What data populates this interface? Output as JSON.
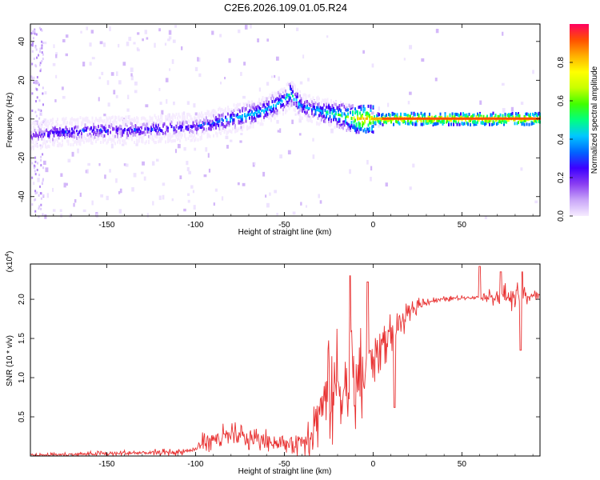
{
  "title": "C2E6.2026.109.01.05.R24",
  "chart_data": [
    {
      "type": "heatmap",
      "name": "spectrogram",
      "xlabel": "Height of straight line (km)",
      "ylabel": "Frequency (Hz)",
      "xlim": [
        -193,
        94
      ],
      "ylim": [
        -50,
        49
      ],
      "xticks": [
        -150,
        -100,
        -50,
        0,
        50
      ],
      "xtick_labels": [
        "-150",
        "-100",
        "-50",
        "0",
        "50"
      ],
      "yticks": [
        -40,
        -20,
        0,
        20,
        40
      ],
      "ytick_labels": [
        "-40",
        "-20",
        "0",
        "20",
        "40"
      ],
      "colorbar": {
        "label": "Normalized spectral amplitude",
        "range": [
          0,
          1
        ],
        "ticks": [
          0.0,
          0.2,
          0.4,
          0.6,
          0.8
        ],
        "tick_labels": [
          "0.0",
          "0.2",
          "0.4",
          "0.6",
          "0.8"
        ],
        "colors": [
          "#f6ecff",
          "#c9a6f8",
          "#8a3df2",
          "#3d00ff",
          "#0066ff",
          "#00c8ff",
          "#00ff80",
          "#40ff00",
          "#c8ff00",
          "#ffff00",
          "#ffb000",
          "#ff5000",
          "#ff0060"
        ]
      },
      "trace_km": [
        -193,
        -180,
        -160,
        -140,
        -120,
        -100,
        -90,
        -80,
        -70,
        -60,
        -50,
        -47,
        -40,
        -35,
        -30,
        -25,
        -20,
        -15,
        -10,
        -5,
        0,
        5,
        10,
        20,
        40,
        60,
        80,
        94
      ],
      "trace_hz": [
        -9,
        -7,
        -6,
        -6,
        -5,
        -4,
        -2,
        0,
        2,
        5,
        10,
        13,
        6,
        5,
        4,
        3,
        2,
        1,
        0,
        0,
        0,
        0,
        0,
        0,
        0,
        0,
        0,
        0
      ],
      "trace_amplitude": [
        0.2,
        0.3,
        0.3,
        0.3,
        0.3,
        0.3,
        0.35,
        0.4,
        0.45,
        0.45,
        0.45,
        0.5,
        0.4,
        0.4,
        0.45,
        0.5,
        0.55,
        0.6,
        0.8,
        0.85,
        0.8,
        0.85,
        0.9,
        0.9,
        0.9,
        0.9,
        0.9,
        0.9
      ]
    },
    {
      "type": "line",
      "name": "snr",
      "xlabel": "Height of straight line (km)",
      "ylabel": "SNR (10 * v/v)",
      "y_multiplier": "(x10",
      "y_exponent": "4",
      "y_multiplier_close": ")",
      "xlim": [
        -193,
        94
      ],
      "ylim": [
        0,
        2.45
      ],
      "xticks": [
        -150,
        -100,
        -50,
        0,
        50
      ],
      "xtick_labels": [
        "-150",
        "-100",
        "-50",
        "0",
        "50"
      ],
      "yticks": [
        0.5,
        1.0,
        1.5,
        2.0
      ],
      "ytick_labels": [
        "0.5",
        "1.0",
        "1.5",
        "2.0"
      ],
      "line_color": "#e83030",
      "envelope": {
        "x": [
          -193,
          -150,
          -110,
          -100,
          -95,
          -80,
          -60,
          -50,
          -40,
          -35,
          -30,
          -25,
          -20,
          -15,
          -10,
          -5,
          0,
          5,
          10,
          15,
          20,
          25,
          30,
          40,
          50,
          60,
          70,
          80,
          94
        ],
        "center": [
          0.01,
          0.03,
          0.05,
          0.08,
          0.2,
          0.25,
          0.2,
          0.15,
          0.2,
          0.3,
          0.6,
          0.8,
          0.9,
          0.85,
          0.9,
          1.0,
          1.3,
          1.45,
          1.55,
          1.7,
          1.8,
          1.92,
          1.97,
          2.0,
          2.02,
          2.03,
          2.04,
          2.04,
          2.05
        ],
        "spread": [
          0.02,
          0.04,
          0.05,
          0.05,
          0.15,
          0.2,
          0.15,
          0.12,
          0.25,
          0.35,
          0.55,
          0.8,
          0.9,
          0.9,
          0.85,
          0.6,
          0.45,
          0.35,
          0.3,
          0.25,
          0.15,
          0.1,
          0.06,
          0.04,
          0.03,
          0.03,
          0.15,
          0.2,
          0.05
        ]
      },
      "peaks": [
        {
          "x": -13,
          "y": 2.3
        },
        {
          "x": -3,
          "y": 2.22
        },
        {
          "x": 12,
          "y": 0.62
        },
        {
          "x": 60,
          "y": 2.42
        },
        {
          "x": 72,
          "y": 2.35
        },
        {
          "x": 84,
          "y": 2.35
        },
        {
          "x": 83,
          "y": 1.35
        }
      ]
    }
  ]
}
